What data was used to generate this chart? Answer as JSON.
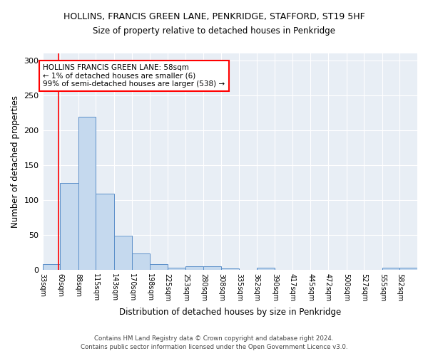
{
  "title": "HOLLINS, FRANCIS GREEN LANE, PENKRIDGE, STAFFORD, ST19 5HF",
  "subtitle": "Size of property relative to detached houses in Penkridge",
  "xlabel": "Distribution of detached houses by size in Penkridge",
  "ylabel": "Number of detached properties",
  "footnote1": "Contains HM Land Registry data © Crown copyright and database right 2024.",
  "footnote2": "Contains public sector information licensed under the Open Government Licence v3.0.",
  "bar_labels": [
    "33sqm",
    "60sqm",
    "88sqm",
    "115sqm",
    "143sqm",
    "170sqm",
    "198sqm",
    "225sqm",
    "253sqm",
    "280sqm",
    "308sqm",
    "335sqm",
    "362sqm",
    "390sqm",
    "417sqm",
    "445sqm",
    "472sqm",
    "500sqm",
    "527sqm",
    "555sqm",
    "582sqm"
  ],
  "bar_values": [
    8,
    125,
    219,
    109,
    49,
    24,
    8,
    3,
    5,
    5,
    2,
    0,
    3,
    0,
    0,
    0,
    0,
    0,
    0,
    3,
    3
  ],
  "bar_color": "#c5d9ee",
  "bar_edge_color": "#5b8fc9",
  "background_color": "#e8eef5",
  "property_line_x": 58,
  "bin_edges": [
    33,
    60,
    88,
    115,
    143,
    170,
    198,
    225,
    253,
    280,
    308,
    335,
    362,
    390,
    417,
    445,
    472,
    500,
    527,
    555,
    582,
    609
  ],
  "annotation_title": "HOLLINS FRANCIS GREEN LANE: 58sqm",
  "annotation_line1": "← 1% of detached houses are smaller (6)",
  "annotation_line2": "99% of semi-detached houses are larger (538) →",
  "ylim": [
    0,
    310
  ],
  "yticks": [
    0,
    50,
    100,
    150,
    200,
    250,
    300
  ]
}
